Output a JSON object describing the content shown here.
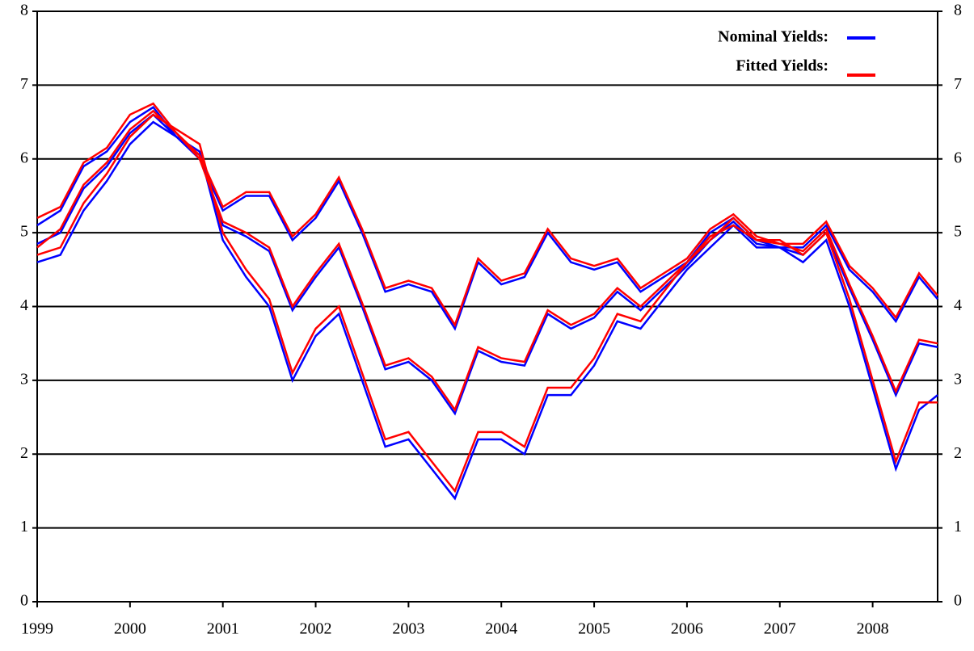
{
  "chart_data": {
    "type": "line",
    "x": [
      1999,
      1999.25,
      1999.5,
      1999.75,
      2000,
      2000.25,
      2000.5,
      2000.75,
      2001,
      2001.25,
      2001.5,
      2001.75,
      2002,
      2002.25,
      2002.5,
      2002.75,
      2003,
      2003.25,
      2003.5,
      2003.75,
      2004,
      2004.25,
      2004.5,
      2004.75,
      2005,
      2005.25,
      2005.5,
      2005.75,
      2006,
      2006.25,
      2006.5,
      2006.75,
      2007,
      2007.25,
      2007.5,
      2007.75,
      2008,
      2008.25,
      2008.5,
      2008.7
    ],
    "xlim": [
      1999,
      2008.7
    ],
    "xticks": [
      1999,
      2000,
      2001,
      2002,
      2003,
      2004,
      2005,
      2006,
      2007,
      2008
    ],
    "ylim": [
      0,
      8
    ],
    "yticks": [
      0,
      1,
      2,
      3,
      4,
      5,
      6,
      7,
      8
    ],
    "y2lim": [
      0,
      8
    ],
    "y2ticks": [
      0,
      1,
      2,
      3,
      4,
      5,
      6,
      7,
      8
    ],
    "grid": true,
    "legend_position": "upper right",
    "legend": [
      {
        "label": "Nominal Yields:",
        "color": "#0000ff"
      },
      {
        "label": "Fitted Yields:",
        "color": "#ff0000"
      }
    ],
    "series": [
      {
        "color": "#0000ff",
        "values": [
          4.6,
          4.7,
          5.3,
          5.7,
          6.2,
          6.5,
          6.3,
          6.1,
          4.9,
          4.4,
          4.0,
          3.0,
          3.6,
          3.9,
          3.0,
          2.1,
          2.2,
          1.8,
          1.4,
          2.2,
          2.2,
          2.0,
          2.8,
          2.8,
          3.2,
          3.8,
          3.7,
          4.1,
          4.5,
          4.8,
          5.1,
          4.8,
          4.8,
          4.6,
          4.9,
          4.0,
          2.9,
          1.8,
          2.6,
          2.8
        ]
      },
      {
        "color": "#0000ff",
        "values": [
          4.85,
          5.0,
          5.6,
          5.9,
          6.35,
          6.6,
          6.3,
          6.05,
          5.1,
          4.95,
          4.75,
          3.95,
          4.4,
          4.8,
          4.0,
          3.15,
          3.25,
          3.0,
          2.55,
          3.4,
          3.25,
          3.2,
          3.9,
          3.7,
          3.85,
          4.2,
          3.95,
          4.25,
          4.55,
          4.9,
          5.15,
          4.85,
          4.8,
          4.7,
          5.0,
          4.25,
          3.55,
          2.8,
          3.5,
          3.45
        ]
      },
      {
        "color": "#0000ff",
        "values": [
          5.1,
          5.3,
          5.9,
          6.1,
          6.5,
          6.7,
          6.3,
          6.0,
          5.3,
          5.5,
          5.5,
          4.9,
          5.2,
          5.7,
          5.0,
          4.2,
          4.3,
          4.2,
          3.7,
          4.6,
          4.3,
          4.4,
          5.0,
          4.6,
          4.5,
          4.6,
          4.2,
          4.4,
          4.6,
          5.0,
          5.2,
          4.9,
          4.8,
          4.8,
          5.1,
          4.5,
          4.2,
          3.8,
          4.4,
          4.1
        ]
      },
      {
        "color": "#ff0000",
        "values": [
          4.7,
          4.8,
          5.4,
          5.8,
          6.3,
          6.6,
          6.4,
          6.2,
          5.0,
          4.5,
          4.1,
          3.1,
          3.7,
          4.0,
          3.1,
          2.2,
          2.3,
          1.9,
          1.5,
          2.3,
          2.3,
          2.1,
          2.9,
          2.9,
          3.3,
          3.9,
          3.8,
          4.2,
          4.6,
          4.9,
          5.2,
          4.9,
          4.9,
          4.7,
          5.0,
          4.1,
          3.0,
          1.9,
          2.7,
          2.7
        ]
      },
      {
        "color": "#ff0000",
        "values": [
          4.8,
          5.05,
          5.65,
          5.95,
          6.4,
          6.65,
          6.35,
          6.0,
          5.15,
          5.0,
          4.8,
          4.0,
          4.45,
          4.85,
          4.05,
          3.2,
          3.3,
          3.05,
          2.6,
          3.45,
          3.3,
          3.25,
          3.95,
          3.75,
          3.9,
          4.25,
          4.0,
          4.3,
          4.6,
          4.95,
          5.1,
          4.9,
          4.85,
          4.75,
          5.05,
          4.3,
          3.6,
          2.85,
          3.55,
          3.5
        ]
      },
      {
        "color": "#ff0000",
        "values": [
          5.2,
          5.35,
          5.95,
          6.15,
          6.6,
          6.75,
          6.35,
          6.05,
          5.35,
          5.55,
          5.55,
          4.95,
          5.25,
          5.75,
          5.05,
          4.25,
          4.35,
          4.25,
          3.75,
          4.65,
          4.35,
          4.45,
          5.05,
          4.65,
          4.55,
          4.65,
          4.25,
          4.45,
          4.65,
          5.05,
          5.25,
          4.95,
          4.85,
          4.85,
          5.15,
          4.55,
          4.25,
          3.85,
          4.45,
          4.15
        ]
      }
    ]
  }
}
